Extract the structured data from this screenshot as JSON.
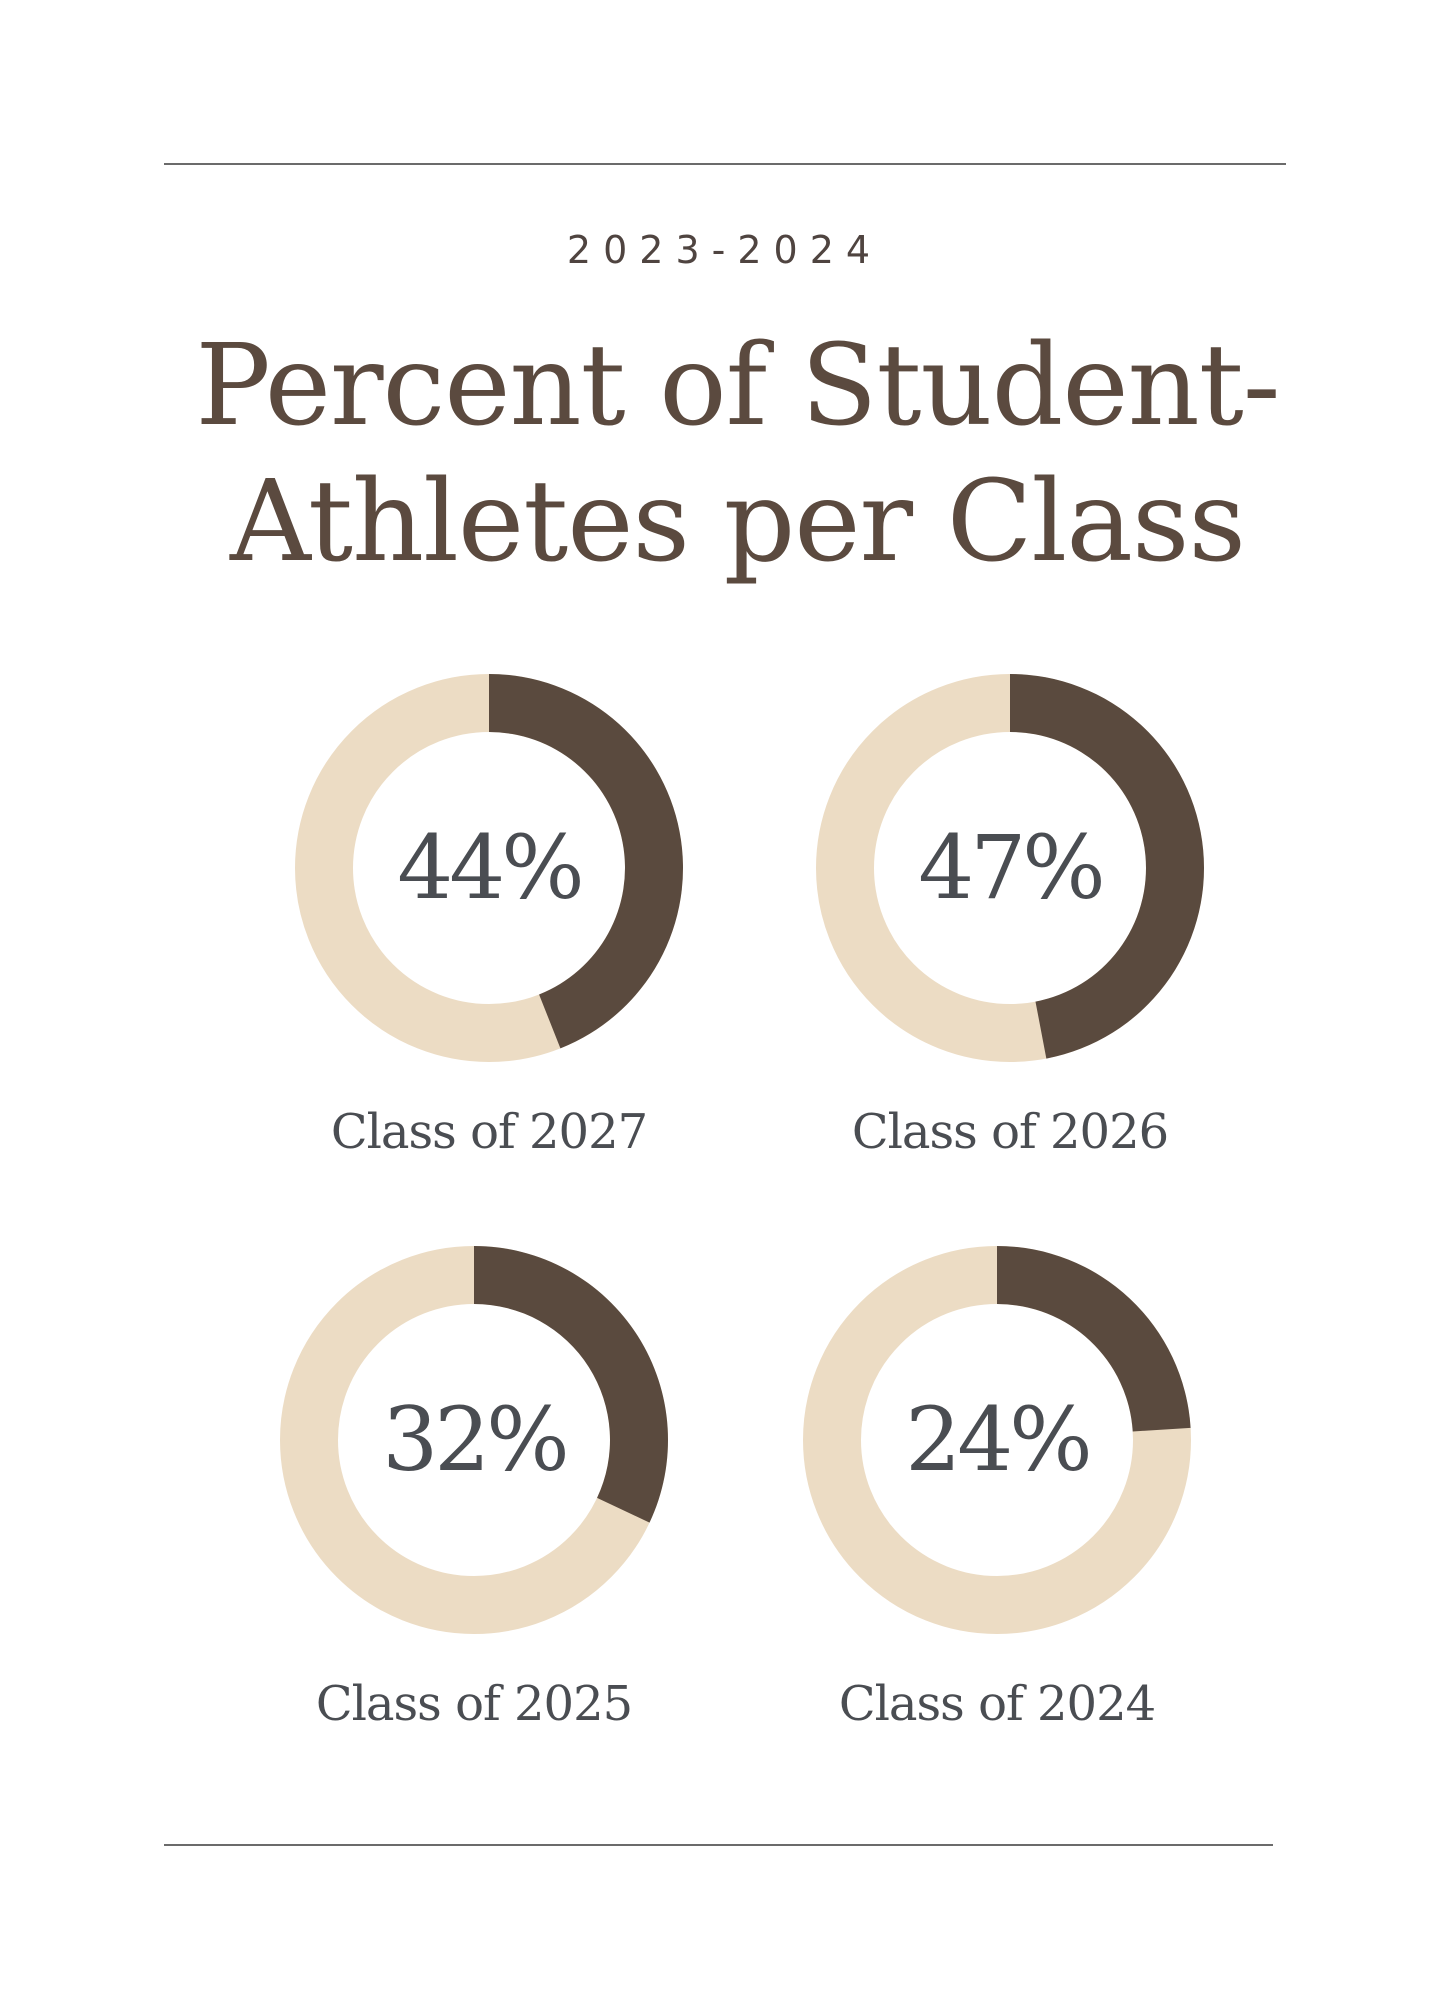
{
  "header": {
    "year": "2023-2024",
    "title_line1": "Percent of Student-",
    "title_line2": "Athletes per Class"
  },
  "colors": {
    "filled": "#5a4a3e",
    "remaining": "#ecdcc4",
    "text": "#4a4d52",
    "title": "#5b4a3f",
    "rule": "#6b6b6b"
  },
  "chart_data": [
    {
      "type": "pie",
      "category": "Class of 2027",
      "value": 44,
      "label": "44%"
    },
    {
      "type": "pie",
      "category": "Class of 2026",
      "value": 47,
      "label": "47%"
    },
    {
      "type": "pie",
      "category": "Class of 2025",
      "value": 32,
      "label": "32%"
    },
    {
      "type": "pie",
      "category": "Class of 2024",
      "value": 24,
      "label": "24%"
    }
  ]
}
